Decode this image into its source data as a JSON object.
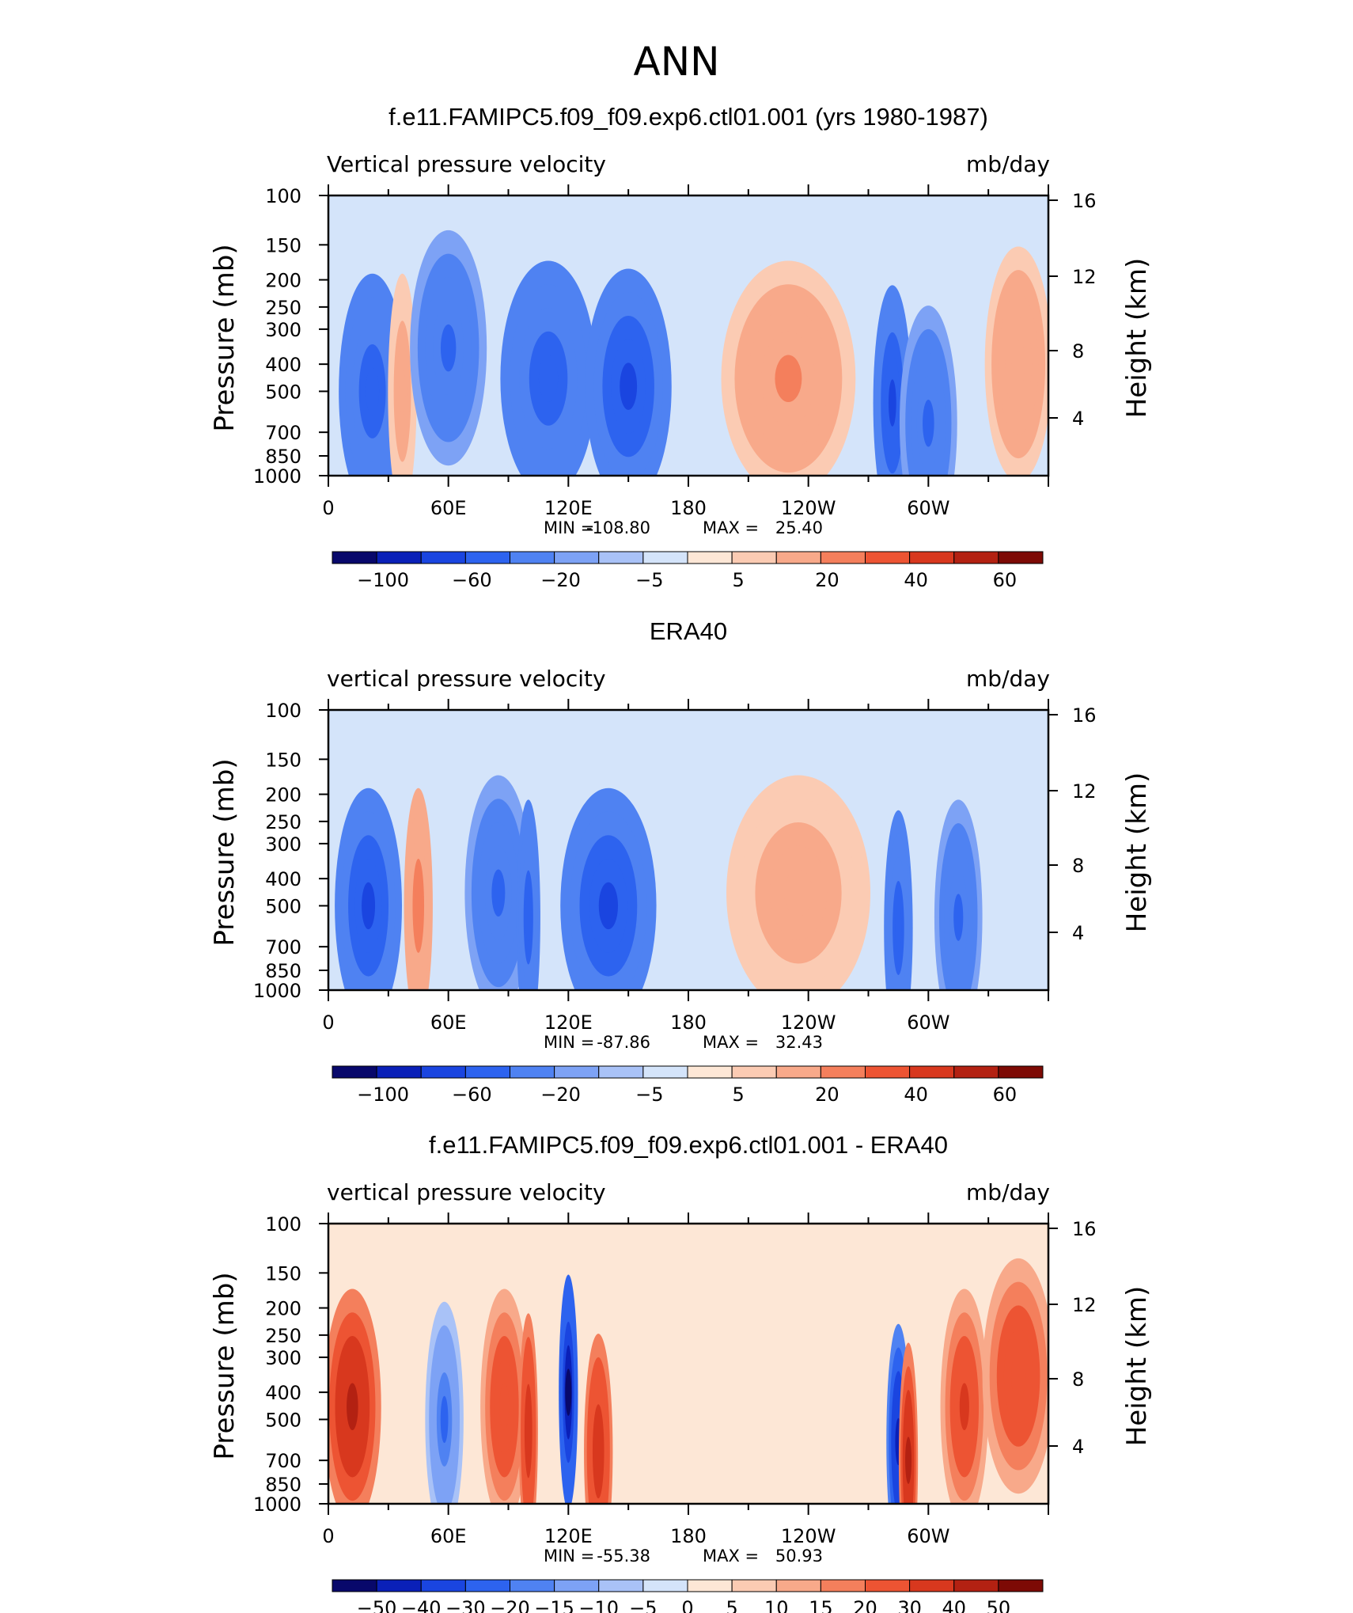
{
  "title": "ANN",
  "colors": {
    "neg": [
      "#08086b",
      "#0a20b8",
      "#1a45e0",
      "#2d63ef",
      "#4f82f2",
      "#7da2f5",
      "#a9c2f7",
      "#d4e4fa"
    ],
    "pos": [
      "#fde7d6",
      "#fbcbb3",
      "#f8a98a",
      "#f47f5c",
      "#ed5433",
      "#d8381e",
      "#b32112",
      "#7d0a05"
    ]
  },
  "chart_data": [
    {
      "type": "heatmap",
      "title": "f.e11.FAMIPC5.f09_f09.exp6.ctl01.001 (yrs 1980-1987)",
      "left_label": "Vertical pressure velocity",
      "right_label": "mb/day",
      "ylabel": "Pressure (mb)",
      "ylabel_right": "Height (km)",
      "x_ticks": [
        "0",
        "60E",
        "120E",
        "180",
        "120W",
        "60W"
      ],
      "y_ticks": [
        "100",
        "150",
        "200",
        "250",
        "300",
        "400",
        "500",
        "700",
        "850",
        "1000"
      ],
      "right_ticks": [
        "16",
        "12",
        "8",
        "4"
      ],
      "stats": {
        "min_label": "MIN =",
        "min": "-108.80",
        "max_label": "MAX =",
        "max": "25.40"
      },
      "colorbar_labels": [
        "−100",
        "−60",
        "−20",
        "−5",
        "5",
        "20",
        "40",
        "60"
      ],
      "features": [
        {
          "lon": 22,
          "w": 14,
          "lev": 500,
          "v": -55
        },
        {
          "lon": 37,
          "w": 6,
          "lev": 500,
          "v": 18
        },
        {
          "lon": 60,
          "w": 16,
          "lev": 350,
          "v": -45
        },
        {
          "lon": 110,
          "w": 20,
          "lev": 450,
          "v": -50
        },
        {
          "lon": 150,
          "w": 18,
          "lev": 480,
          "v": -60
        },
        {
          "lon": 230,
          "w": 28,
          "lev": 450,
          "v": 22
        },
        {
          "lon": 282,
          "w": 8,
          "lev": 550,
          "v": -60
        },
        {
          "lon": 300,
          "w": 12,
          "lev": 650,
          "v": -40
        },
        {
          "lon": 345,
          "w": 14,
          "lev": 400,
          "v": 20
        }
      ]
    },
    {
      "type": "heatmap",
      "title": "ERA40",
      "left_label": "vertical pressure velocity",
      "right_label": "mb/day",
      "ylabel": "Pressure (mb)",
      "ylabel_right": "Height (km)",
      "x_ticks": [
        "0",
        "60E",
        "120E",
        "180",
        "120W",
        "60W"
      ],
      "y_ticks": [
        "100",
        "150",
        "200",
        "250",
        "300",
        "400",
        "500",
        "700",
        "850",
        "1000"
      ],
      "right_ticks": [
        "16",
        "12",
        "8",
        "4"
      ],
      "stats": {
        "min_label": "MIN =",
        "min": "-87.86",
        "max_label": "MAX =",
        "max": "32.43"
      },
      "colorbar_labels": [
        "−100",
        "−60",
        "−20",
        "−5",
        "5",
        "20",
        "40",
        "60"
      ],
      "features": [
        {
          "lon": 20,
          "w": 14,
          "lev": 500,
          "v": -60
        },
        {
          "lon": 45,
          "w": 6,
          "lev": 500,
          "v": 28
        },
        {
          "lon": 85,
          "w": 14,
          "lev": 450,
          "v": -40
        },
        {
          "lon": 100,
          "w": 5,
          "lev": 550,
          "v": -50
        },
        {
          "lon": 140,
          "w": 20,
          "lev": 500,
          "v": -60
        },
        {
          "lon": 235,
          "w": 30,
          "lev": 450,
          "v": 18
        },
        {
          "lon": 285,
          "w": 6,
          "lev": 600,
          "v": -55
        },
        {
          "lon": 315,
          "w": 10,
          "lev": 550,
          "v": -45
        }
      ]
    },
    {
      "type": "heatmap",
      "title": "f.e11.FAMIPC5.f09_f09.exp6.ctl01.001 - ERA40",
      "left_label": "vertical pressure velocity",
      "right_label": "mb/day",
      "ylabel": "Pressure (mb)",
      "ylabel_right": "Height (km)",
      "x_ticks": [
        "0",
        "60E",
        "120E",
        "180",
        "120W",
        "60W"
      ],
      "y_ticks": [
        "100",
        "150",
        "200",
        "250",
        "300",
        "400",
        "500",
        "700",
        "850",
        "1000"
      ],
      "right_ticks": [
        "16",
        "12",
        "8",
        "4"
      ],
      "stats": {
        "min_label": "MIN =",
        "min": "-55.38",
        "max_label": "MAX =",
        "max": "50.93"
      },
      "colorbar_labels": [
        "−50",
        "−40",
        "−30",
        "−20",
        "−15",
        "−10",
        "−5",
        "0",
        "5",
        "10",
        "15",
        "20",
        "30",
        "40",
        "50"
      ],
      "features": [
        {
          "lon": 12,
          "w": 12,
          "lev": 450,
          "v": 45
        },
        {
          "lon": 58,
          "w": 8,
          "lev": 500,
          "v": -20
        },
        {
          "lon": 88,
          "w": 10,
          "lev": 450,
          "v": 30
        },
        {
          "lon": 100,
          "w": 4,
          "lev": 550,
          "v": 40
        },
        {
          "lon": 120,
          "w": 4,
          "lev": 400,
          "v": -50
        },
        {
          "lon": 135,
          "w": 6,
          "lev": 650,
          "v": 40
        },
        {
          "lon": 285,
          "w": 5,
          "lev": 600,
          "v": -45
        },
        {
          "lon": 290,
          "w": 4,
          "lev": 700,
          "v": 45
        },
        {
          "lon": 318,
          "w": 10,
          "lev": 450,
          "v": 35
        },
        {
          "lon": 345,
          "w": 15,
          "lev": 350,
          "v": 30
        }
      ]
    }
  ]
}
